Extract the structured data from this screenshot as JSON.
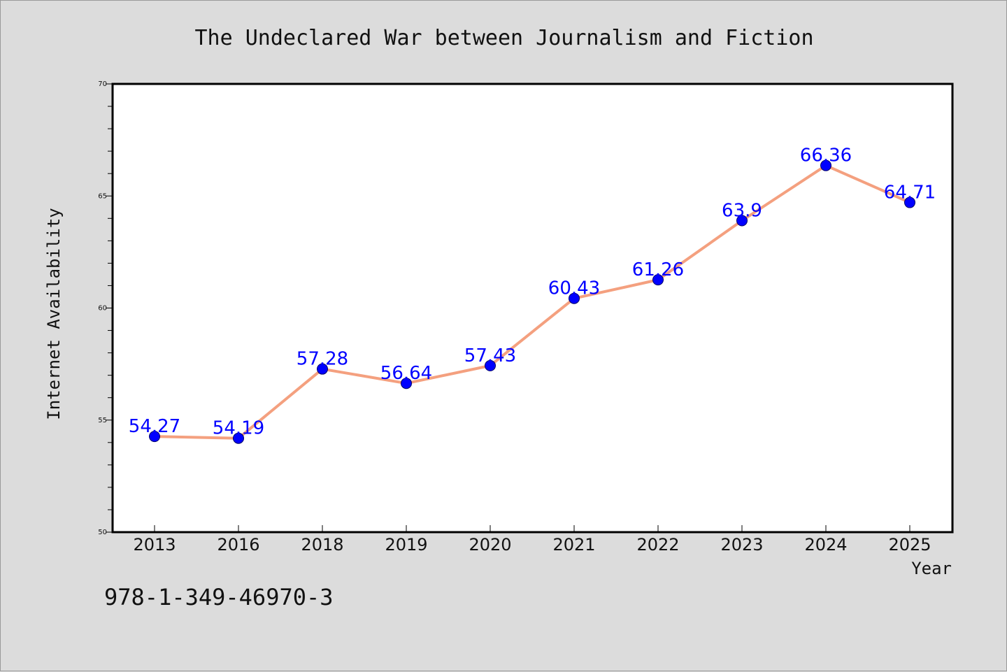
{
  "chart_data": {
    "type": "line",
    "title": "The Undeclared War between Journalism and Fiction",
    "xlabel": "Year",
    "ylabel": "Internet Availability",
    "categories": [
      "2013",
      "2016",
      "2018",
      "2019",
      "2020",
      "2021",
      "2022",
      "2023",
      "2024",
      "2025"
    ],
    "values": [
      54.27,
      54.19,
      57.28,
      56.64,
      57.43,
      60.43,
      61.26,
      63.9,
      66.36,
      64.71
    ],
    "data_labels": [
      "54.27",
      "54.19",
      "57.28",
      "56.64",
      "57.43",
      "60.43",
      "61.26",
      "63.9",
      "66.36",
      "64.71"
    ],
    "ylim": [
      50,
      70
    ],
    "yticks": [
      "50",
      "55",
      "60",
      "65",
      "70"
    ],
    "grid": false,
    "legend": "none",
    "line_color": "#f4a07f",
    "marker_color": "#0000ff",
    "label_color": "#0000ff"
  },
  "footnote": "978-1-349-46970-3",
  "colors": {
    "background": "#dcdcdc",
    "plot_background": "#ffffff",
    "axis": "#000000"
  }
}
